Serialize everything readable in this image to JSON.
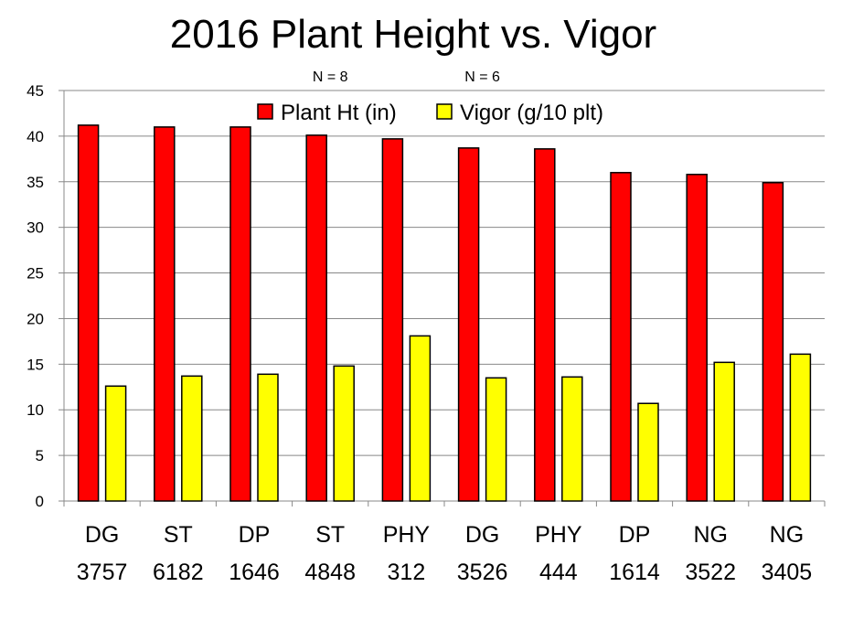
{
  "chart_data": {
    "type": "bar",
    "title": "2016 Plant Height vs. Vigor",
    "annotations": [
      {
        "text": "N = 8",
        "category_index": 3
      },
      {
        "text": "N = 6",
        "category_index": 5
      }
    ],
    "categories": [
      [
        "DG",
        "3757"
      ],
      [
        "ST",
        "6182"
      ],
      [
        "DP",
        "1646"
      ],
      [
        "ST",
        "4848"
      ],
      [
        "PHY",
        "312"
      ],
      [
        "DG",
        "3526"
      ],
      [
        "PHY",
        "444"
      ],
      [
        "DP",
        "1614"
      ],
      [
        "NG",
        "3522"
      ],
      [
        "NG",
        "3405"
      ]
    ],
    "series": [
      {
        "name": "Plant Ht (in)",
        "color": "#ff0000",
        "values": [
          41.2,
          41.0,
          41.0,
          40.1,
          39.7,
          38.7,
          38.6,
          36.0,
          35.8,
          34.9
        ]
      },
      {
        "name": "Vigor (g/10 plt)",
        "color": "#ffff00",
        "values": [
          12.6,
          13.7,
          13.9,
          14.8,
          18.1,
          13.5,
          13.6,
          10.7,
          15.2,
          16.1
        ]
      }
    ],
    "ylim": [
      0,
      45
    ],
    "yticks": [
      "0",
      "5",
      "10",
      "15",
      "20",
      "25",
      "30",
      "35",
      "40",
      "45"
    ],
    "grid": true,
    "legend_position": "top"
  }
}
